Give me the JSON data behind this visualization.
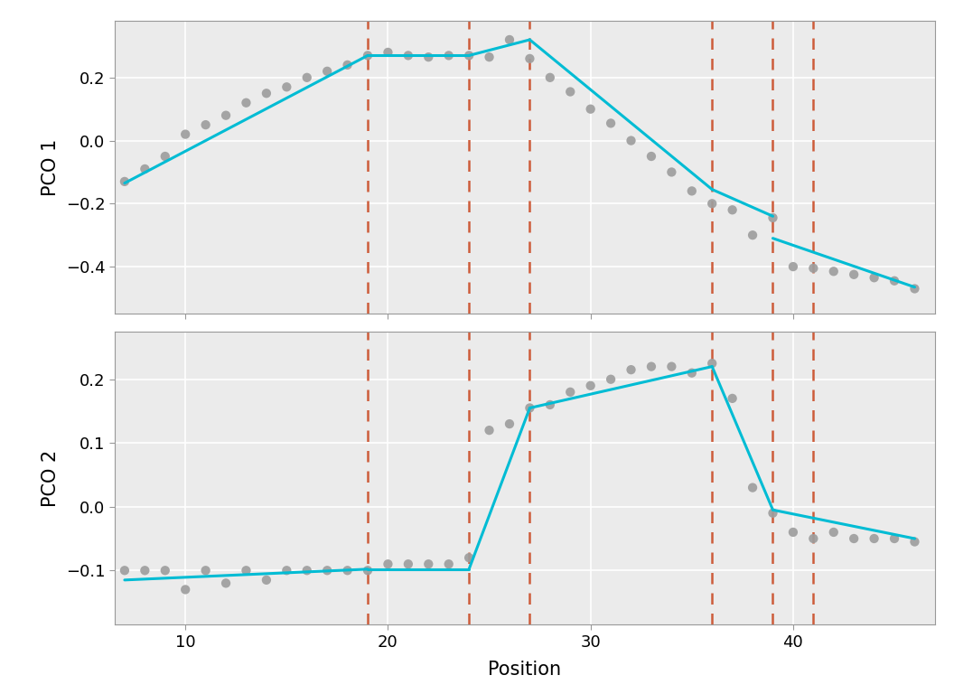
{
  "pc1_scatter_x": [
    7,
    8,
    9,
    10,
    11,
    12,
    13,
    14,
    15,
    16,
    17,
    18,
    19,
    20,
    21,
    22,
    23,
    24,
    25,
    26,
    27,
    28,
    29,
    30,
    31,
    32,
    33,
    34,
    35,
    36,
    37,
    38,
    39,
    40,
    41,
    42,
    43,
    44,
    45,
    46
  ],
  "pc1_scatter_y": [
    -0.13,
    -0.09,
    -0.05,
    0.02,
    0.05,
    0.08,
    0.12,
    0.15,
    0.17,
    0.2,
    0.22,
    0.24,
    0.27,
    0.28,
    0.27,
    0.265,
    0.27,
    0.27,
    0.265,
    0.32,
    0.26,
    0.2,
    0.155,
    0.1,
    0.055,
    0.0,
    -0.05,
    -0.1,
    -0.16,
    -0.2,
    -0.22,
    -0.3,
    -0.245,
    -0.4,
    -0.405,
    -0.415,
    -0.425,
    -0.435,
    -0.445,
    -0.47
  ],
  "pc1_seg_x": [
    7,
    19,
    19,
    24,
    24,
    27,
    27,
    36,
    36,
    39,
    39,
    46
  ],
  "pc1_seg_y": [
    -0.135,
    0.27,
    0.27,
    0.27,
    0.27,
    0.32,
    0.32,
    -0.155,
    -0.155,
    -0.24,
    -0.31,
    -0.465
  ],
  "pc2_scatter_x": [
    7,
    8,
    9,
    10,
    11,
    12,
    13,
    14,
    15,
    16,
    17,
    18,
    19,
    20,
    21,
    22,
    23,
    24,
    25,
    26,
    27,
    28,
    29,
    30,
    31,
    32,
    33,
    34,
    35,
    36,
    37,
    38,
    39,
    40,
    41,
    42,
    43,
    44,
    45,
    46
  ],
  "pc2_scatter_y": [
    -0.1,
    -0.1,
    -0.1,
    -0.13,
    -0.1,
    -0.12,
    -0.1,
    -0.115,
    -0.1,
    -0.1,
    -0.1,
    -0.1,
    -0.1,
    -0.09,
    -0.09,
    -0.09,
    -0.09,
    -0.08,
    0.12,
    0.13,
    0.155,
    0.16,
    0.18,
    0.19,
    0.2,
    0.215,
    0.22,
    0.22,
    0.21,
    0.225,
    0.17,
    0.03,
    -0.01,
    -0.04,
    -0.05,
    -0.04,
    -0.05,
    -0.05,
    -0.05,
    -0.055
  ],
  "pc2_seg_x": [
    7,
    19,
    19,
    24,
    24,
    27,
    27,
    36,
    36,
    39,
    39,
    46
  ],
  "pc2_seg_y": [
    -0.115,
    -0.098,
    -0.098,
    -0.098,
    -0.098,
    0.155,
    0.155,
    0.22,
    0.22,
    -0.005,
    -0.005,
    -0.05
  ],
  "breakpoints": [
    19,
    24,
    27,
    36,
    39,
    41
  ],
  "xlim": [
    6.5,
    47
  ],
  "pc1_ylim": [
    -0.55,
    0.38
  ],
  "pc2_ylim": [
    -0.185,
    0.275
  ],
  "pc1_yticks": [
    -0.4,
    -0.2,
    0.0,
    0.2
  ],
  "pc2_yticks": [
    -0.1,
    0.0,
    0.1,
    0.2
  ],
  "xticks": [
    10,
    20,
    30,
    40
  ],
  "xlabel": "Position",
  "pc1_ylabel": "PCO 1",
  "pc2_ylabel": "PCO 2",
  "line_color": "#00BCD4",
  "scatter_color": "#9E9E9E",
  "breakpoint_color": "#CD5C3A",
  "background_color": "#EBEBEB",
  "grid_color": "#FFFFFF",
  "line_width": 2.2,
  "scatter_size": 55
}
